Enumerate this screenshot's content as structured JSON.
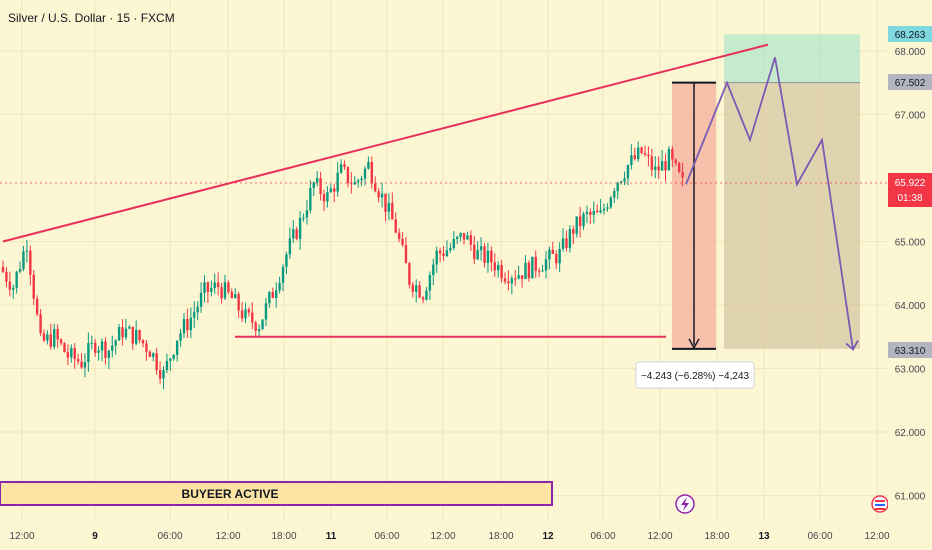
{
  "title": "Silver / U.S. Dollar · 15 · FXCM",
  "colors": {
    "background": "#fdf6d3",
    "trendline": "#e8315a",
    "stop_zone": "#b2e6c9",
    "profit_zone": "#d6c7a3",
    "measure_zone": "#f6b6a2",
    "projection": "#7b5ab4",
    "bull": "#089981",
    "bear": "#f23645",
    "current_price": "#f23645"
  },
  "price_axis": {
    "ticks": [
      "68.000",
      "67.000",
      "65.000",
      "64.000",
      "63.000",
      "62.000",
      "61.000"
    ],
    "labels": {
      "stop": "68.263",
      "entry": "67.502",
      "current": "65.922",
      "countdown": "01:38",
      "target": "63.310"
    }
  },
  "time_axis": {
    "ticks": [
      "12:00",
      "9",
      "06:00",
      "12:00",
      "18:00",
      "11",
      "06:00",
      "12:00",
      "18:00",
      "12",
      "06:00",
      "12:00",
      "18:00",
      "13",
      "06:00",
      "12:00"
    ],
    "bold": [
      false,
      true,
      false,
      false,
      false,
      true,
      false,
      false,
      false,
      true,
      false,
      false,
      false,
      true,
      false,
      false
    ]
  },
  "measure_label": "−4.243 (−6.28%) −4,243",
  "banner": {
    "text": "BUYEER ACTIVE"
  },
  "icons": {
    "lightning": "lightning-icon",
    "flag": "calendar-flag-icon"
  },
  "chart_data": {
    "type": "line",
    "title": "Silver / U.S. Dollar · 15 · FXCM",
    "x_ticks": [
      "12:00",
      "9",
      "06:00",
      "12:00",
      "18:00",
      "11",
      "06:00",
      "12:00",
      "18:00",
      "12",
      "06:00",
      "12:00",
      "18:00",
      "13",
      "06:00",
      "12:00"
    ],
    "ylim": [
      60.7,
      68.6
    ],
    "series": [
      {
        "values": [
          64.6,
          64.3,
          65.0,
          63.4,
          63.5,
          63.2,
          63.1,
          63.4,
          63.3,
          63.6,
          63.5,
          63.3,
          62.9,
          63.5,
          63.8,
          64.2,
          64.3,
          64.1,
          63.8,
          63.7,
          64.2,
          64.8,
          65.3,
          65.9,
          65.7,
          66.1,
          65.9,
          66.2,
          65.7,
          65.2,
          64.4,
          64.2,
          64.8,
          64.9,
          65.1,
          64.8,
          64.7,
          64.5,
          64.5,
          64.6,
          64.7,
          64.8,
          65.2,
          65.4,
          65.4,
          65.9,
          66.2,
          66.4,
          66.1,
          66.3,
          65.9
        ]
      },
      {
        "values": [
          65.9,
          67.5,
          66.6,
          67.9,
          65.9,
          66.6,
          63.3
        ]
      }
    ],
    "levels": {
      "stop": 68.263,
      "entry": 67.502,
      "current": 65.922,
      "target": 63.31,
      "support": 63.5
    },
    "measure": {
      "change": -4.243,
      "percent": -6.28
    }
  }
}
